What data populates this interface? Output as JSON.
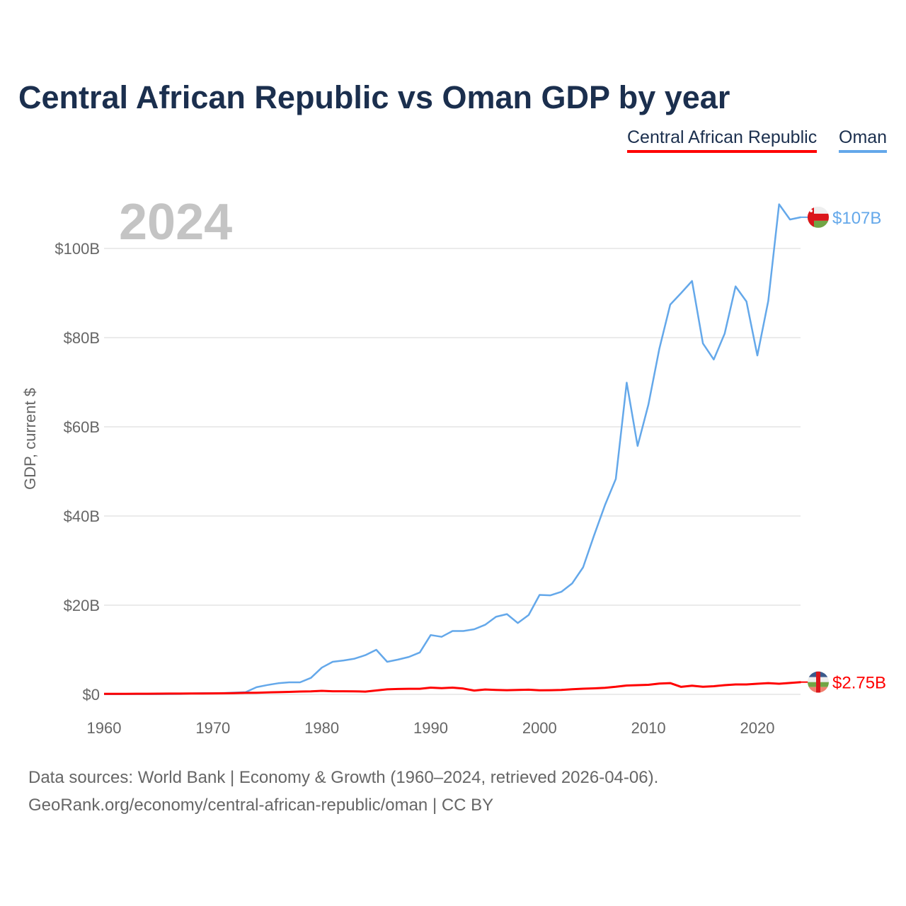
{
  "chart_data": {
    "type": "line",
    "title": "Central African Republic vs Oman GDP by year",
    "ylabel": "GDP, current $",
    "xlabel": "",
    "xlim": [
      1960,
      2024
    ],
    "ylim": [
      0,
      110
    ],
    "x_ticks": [
      1960,
      1970,
      1980,
      1990,
      2000,
      2010,
      2020
    ],
    "x_tick_labels": [
      "1960",
      "1970",
      "1980",
      "1990",
      "2000",
      "2010",
      "2020"
    ],
    "y_ticks": [
      0,
      20,
      40,
      60,
      80,
      100
    ],
    "y_tick_labels": [
      "$0",
      "$20B",
      "$40B",
      "$60B",
      "$80B",
      "$100B"
    ],
    "grid": true,
    "legend_position": "top-right",
    "year_watermark": "2024",
    "x": [
      1960,
      1961,
      1962,
      1963,
      1964,
      1965,
      1966,
      1967,
      1968,
      1969,
      1970,
      1971,
      1972,
      1973,
      1974,
      1975,
      1976,
      1977,
      1978,
      1979,
      1980,
      1981,
      1982,
      1983,
      1984,
      1985,
      1986,
      1987,
      1988,
      1989,
      1990,
      1991,
      1992,
      1993,
      1994,
      1995,
      1996,
      1997,
      1998,
      1999,
      2000,
      2001,
      2002,
      2003,
      2004,
      2005,
      2006,
      2007,
      2008,
      2009,
      2010,
      2011,
      2012,
      2013,
      2014,
      2015,
      2016,
      2017,
      2018,
      2019,
      2020,
      2021,
      2022,
      2023,
      2024
    ],
    "series": [
      {
        "name": "Central African Republic",
        "color": "#ff0000",
        "end_label": "$2.75B",
        "flag": "central-african-republic-flag",
        "values": [
          0.11,
          0.12,
          0.13,
          0.14,
          0.15,
          0.16,
          0.17,
          0.18,
          0.19,
          0.2,
          0.22,
          0.24,
          0.27,
          0.33,
          0.37,
          0.44,
          0.49,
          0.56,
          0.64,
          0.67,
          0.8,
          0.7,
          0.7,
          0.68,
          0.62,
          0.87,
          1.12,
          1.2,
          1.26,
          1.26,
          1.5,
          1.4,
          1.5,
          1.3,
          0.85,
          1.1,
          1.0,
          0.94,
          1.0,
          1.05,
          0.91,
          0.94,
          0.99,
          1.14,
          1.27,
          1.35,
          1.47,
          1.7,
          1.98,
          2.06,
          2.14,
          2.43,
          2.52,
          1.69,
          1.96,
          1.7,
          1.83,
          2.07,
          2.22,
          2.22,
          2.38,
          2.52,
          2.38,
          2.55,
          2.75
        ]
      },
      {
        "name": "Oman",
        "color": "#64a8ea",
        "end_label": "$107B",
        "flag": "oman-flag",
        "values": [
          0.05,
          0.05,
          0.06,
          0.06,
          0.07,
          0.07,
          0.08,
          0.1,
          0.2,
          0.25,
          0.26,
          0.3,
          0.4,
          0.5,
          1.6,
          2.1,
          2.5,
          2.7,
          2.7,
          3.7,
          6.0,
          7.3,
          7.6,
          8.0,
          8.8,
          10.0,
          7.3,
          7.8,
          8.4,
          9.4,
          13.3,
          12.9,
          14.2,
          14.2,
          14.6,
          15.6,
          17.4,
          18.0,
          16.0,
          17.8,
          22.3,
          22.2,
          23.0,
          24.9,
          28.5,
          35.6,
          42.4,
          48.3,
          69.9,
          55.7,
          65.0,
          77.5,
          87.4,
          90.0,
          92.7,
          78.7,
          75.1,
          80.9,
          91.5,
          88.1,
          76.0,
          88.2,
          109.9,
          106.5,
          107.0
        ]
      }
    ]
  },
  "footer": {
    "line1": "Data sources: World Bank | Economy & Growth (1960–2024, retrieved 2026-04-06).",
    "line2": "GeoRank.org/economy/central-african-republic/oman | CC BY"
  }
}
